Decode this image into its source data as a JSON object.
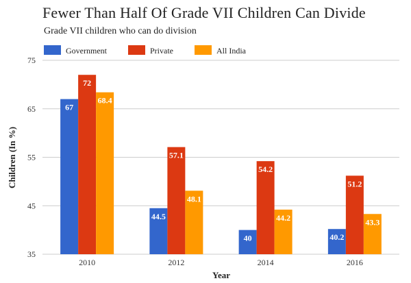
{
  "chart_data": {
    "type": "bar",
    "title": "Fewer Than Half Of Grade VII Children Can Divide",
    "subtitle": "Grade VII children who can do division",
    "xlabel": "Year",
    "ylabel": "Children (In %)",
    "categories": [
      "2010",
      "2012",
      "2014",
      "2016"
    ],
    "ylim": [
      35,
      75
    ],
    "yticks": [
      35,
      45,
      55,
      65,
      75
    ],
    "grid": true,
    "legend_position": "top-left",
    "series": [
      {
        "name": "Government",
        "color": "#3366cc",
        "values": [
          67,
          44.5,
          40,
          40.2
        ]
      },
      {
        "name": "Private",
        "color": "#dc3912",
        "values": [
          72,
          57.1,
          54.2,
          51.2
        ]
      },
      {
        "name": "All India",
        "color": "#ff9900",
        "values": [
          68.4,
          48.1,
          44.2,
          43.3
        ]
      }
    ]
  }
}
